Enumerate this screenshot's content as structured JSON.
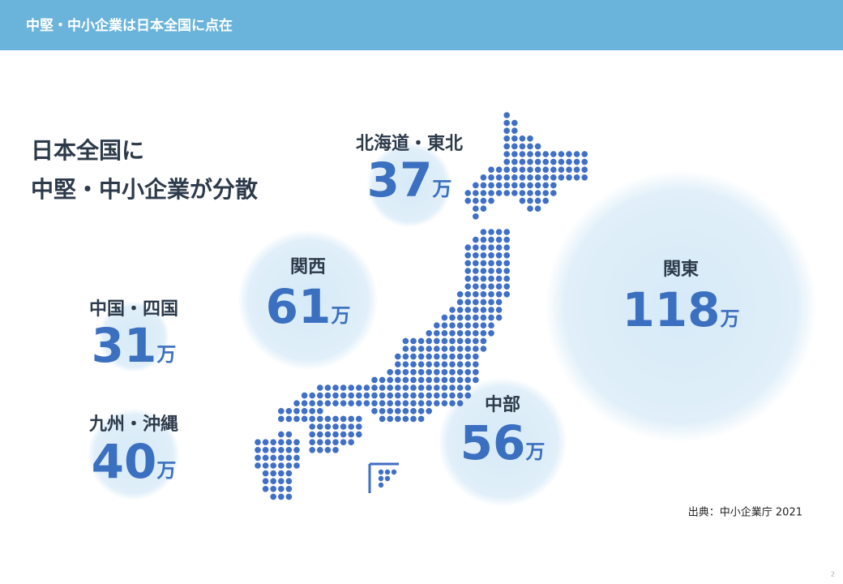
{
  "header": {
    "title": "中堅・中小企業は日本全国に点在"
  },
  "headline": [
    "日本全国に",
    "中堅・中小企業が分散"
  ],
  "unit": "万",
  "regions": [
    {
      "name": "北海道・東北",
      "value": 37
    },
    {
      "name": "関西",
      "value": 61
    },
    {
      "name": "関東",
      "value": 118
    },
    {
      "name": "中国・四国",
      "value": 31
    },
    {
      "name": "九州・沖縄",
      "value": 40
    },
    {
      "name": "中部",
      "value": 56
    }
  ],
  "source": "出典：中小企業庁 2021",
  "page_number": "2"
}
